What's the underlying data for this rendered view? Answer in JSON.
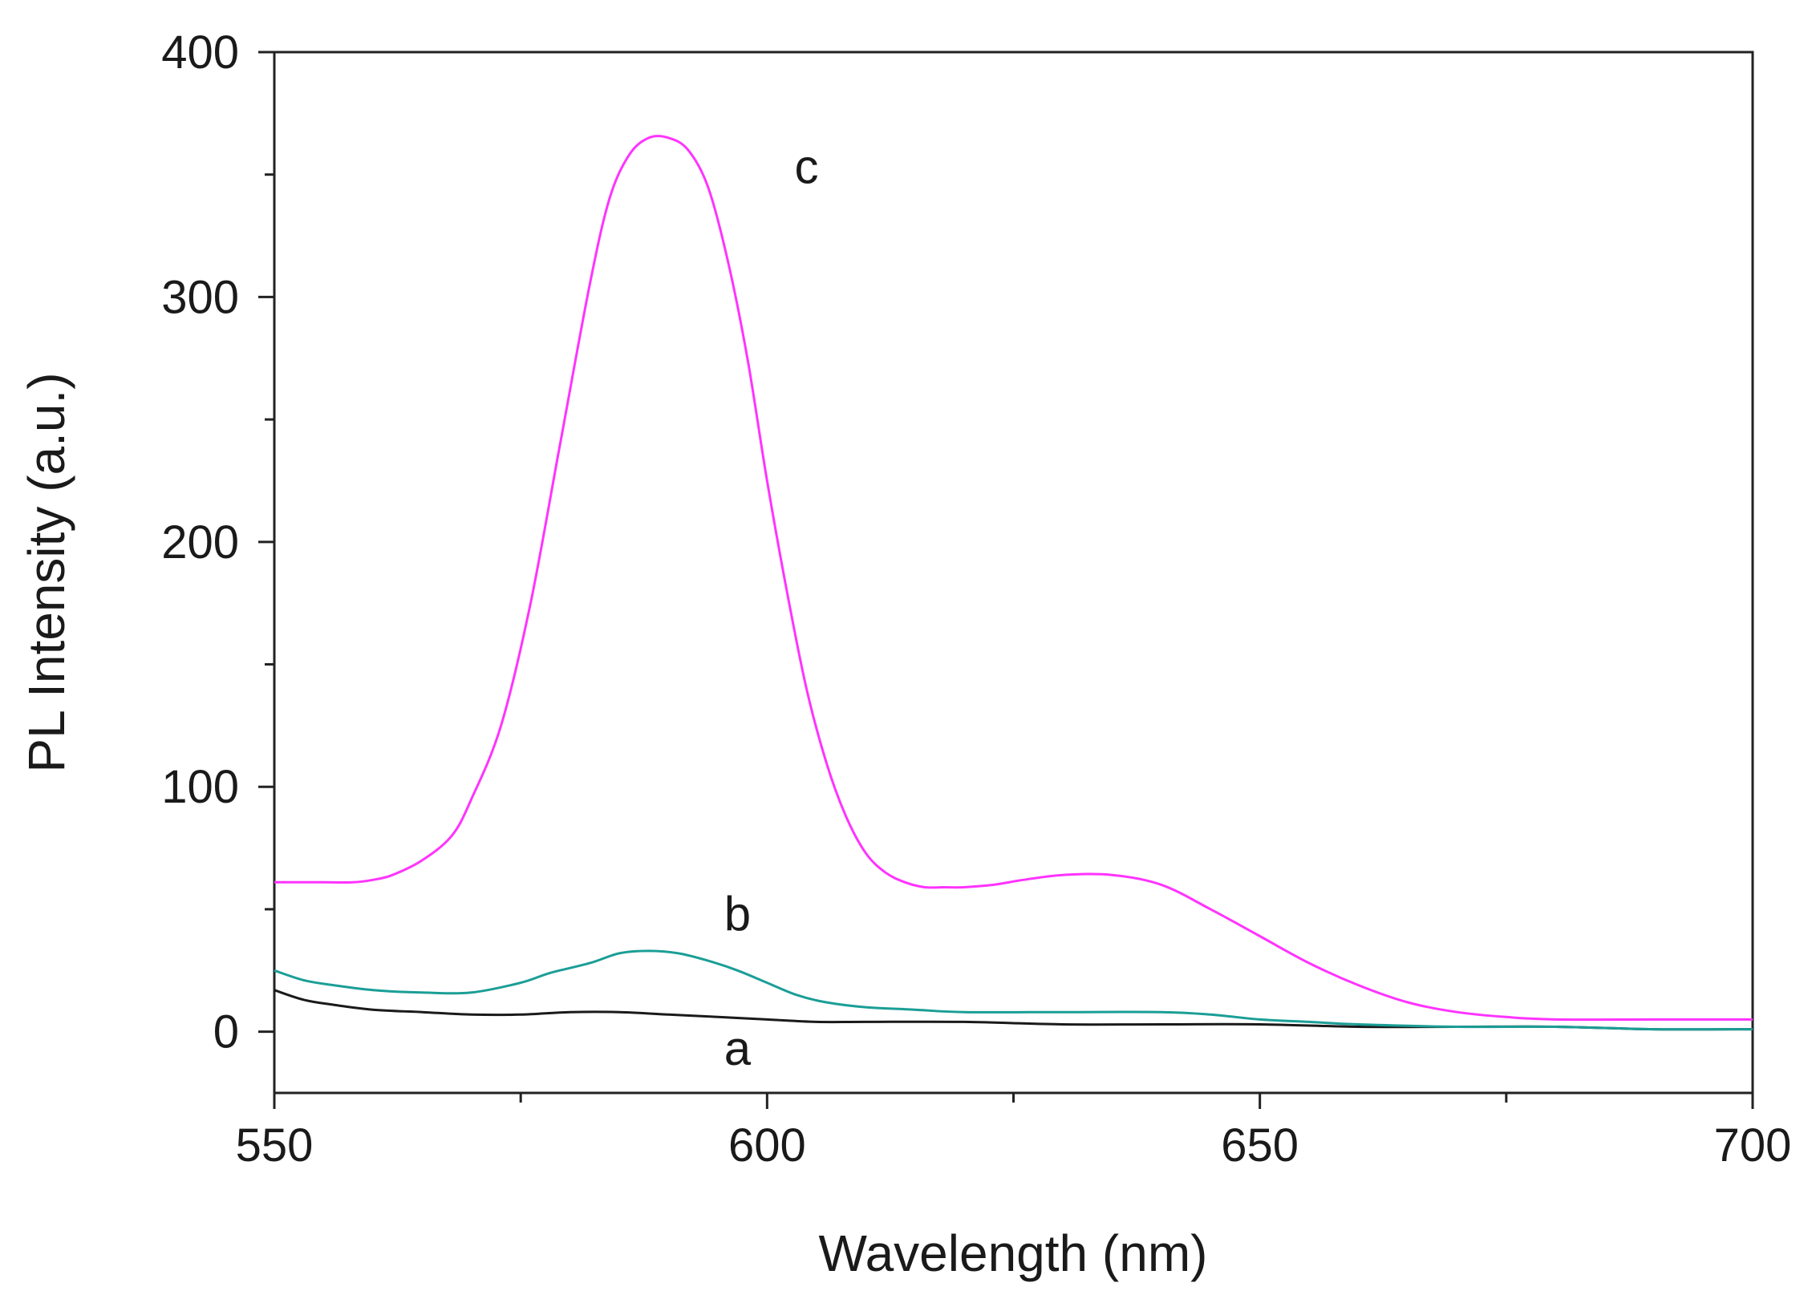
{
  "chart_data": {
    "type": "line",
    "title": "",
    "xlabel": "Wavelength (nm)",
    "ylabel": "PL Intensity (a.u.)",
    "xlim": [
      550,
      700
    ],
    "ylim": [
      -25,
      400
    ],
    "xticks": [
      550,
      600,
      650,
      700
    ],
    "yticks": [
      0,
      100,
      200,
      300,
      400
    ],
    "x_minor_step": 25,
    "y_minor_step": 50,
    "grid": false,
    "series": [
      {
        "name": "a",
        "label": "a",
        "color": "#1a1a1a",
        "label_at": [
          597,
          -7
        ],
        "x": [
          550,
          553,
          556,
          560,
          565,
          570,
          575,
          580,
          585,
          590,
          595,
          600,
          605,
          610,
          620,
          630,
          640,
          650,
          660,
          670,
          680,
          690,
          700
        ],
        "y": [
          17,
          13,
          11,
          9,
          8,
          7,
          7,
          8,
          8,
          7,
          6,
          5,
          4,
          4,
          4,
          3,
          3,
          3,
          2,
          2,
          2,
          1,
          1
        ]
      },
      {
        "name": "b",
        "label": "b",
        "color": "#1a9e96",
        "label_at": [
          597,
          48
        ],
        "x": [
          550,
          553,
          556,
          560,
          565,
          570,
          575,
          578,
          582,
          585,
          588,
          591,
          594,
          597,
          600,
          603,
          606,
          610,
          615,
          620,
          630,
          640,
          645,
          650,
          655,
          660,
          670,
          680,
          690,
          700
        ],
        "y": [
          25,
          21,
          19,
          17,
          16,
          16,
          20,
          24,
          28,
          32,
          33,
          32,
          29,
          25,
          20,
          15,
          12,
          10,
          9,
          8,
          8,
          8,
          7,
          5,
          4,
          3,
          2,
          2,
          1,
          1
        ]
      },
      {
        "name": "c",
        "label": "c",
        "color": "#ff33ff",
        "label_at": [
          604,
          353
        ],
        "x": [
          550,
          555,
          558,
          560,
          562,
          565,
          568,
          570,
          573,
          576,
          579,
          582,
          584,
          586,
          588,
          590,
          592,
          594,
          596,
          598,
          600,
          602,
          604,
          606,
          608,
          610,
          612,
          614,
          616,
          618,
          620,
          623,
          626,
          630,
          635,
          640,
          645,
          650,
          655,
          660,
          665,
          670,
          675,
          680,
          690,
          700
        ],
        "y": [
          61,
          61,
          61,
          62,
          64,
          70,
          80,
          95,
          125,
          175,
          240,
          305,
          340,
          358,
          365,
          365,
          360,
          345,
          315,
          275,
          225,
          180,
          140,
          110,
          88,
          73,
          65,
          61,
          59,
          59,
          59,
          60,
          62,
          64,
          64,
          60,
          50,
          39,
          28,
          19,
          12,
          8,
          6,
          5,
          5,
          5
        ]
      }
    ]
  }
}
